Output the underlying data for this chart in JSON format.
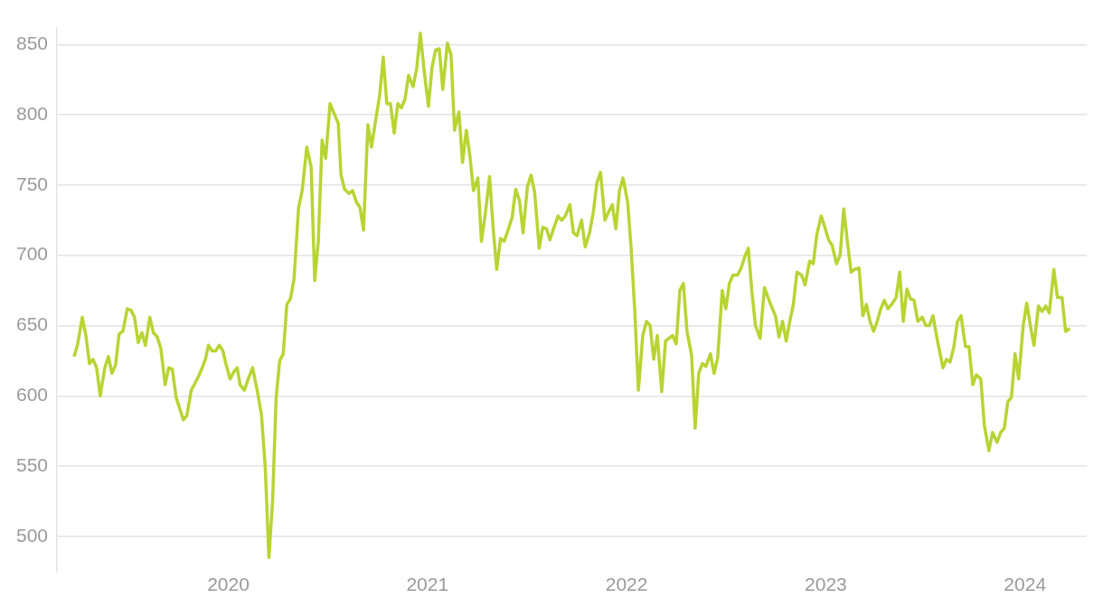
{
  "chart_data": {
    "type": "line",
    "x": [
      2019.226,
      2019.244,
      2019.267,
      2019.285,
      2019.303,
      2019.321,
      2019.339,
      2019.357,
      2019.38,
      2019.398,
      2019.416,
      2019.434,
      2019.452,
      2019.471,
      2019.493,
      2019.511,
      2019.529,
      2019.548,
      2019.566,
      2019.584,
      2019.606,
      2019.624,
      2019.643,
      2019.661,
      2019.683,
      2019.701,
      2019.719,
      2019.738,
      2019.756,
      2019.774,
      2019.792,
      2019.814,
      2019.833,
      2019.851,
      2019.869,
      2019.887,
      2019.9,
      2019.919,
      2019.937,
      2019.955,
      2019.973,
      2019.986,
      2020.009,
      2020.027,
      2020.045,
      2020.059,
      2020.081,
      2020.1,
      2020.122,
      2020.145,
      2020.167,
      2020.186,
      2020.204,
      2020.222,
      2020.24,
      2020.258,
      2020.276,
      2020.294,
      2020.312,
      2020.33,
      2020.353,
      2020.371,
      2020.394,
      2020.416,
      2020.434,
      2020.452,
      2020.471,
      2020.489,
      2020.511,
      2020.534,
      2020.552,
      2020.566,
      2020.584,
      2020.606,
      2020.624,
      2020.643,
      2020.661,
      2020.679,
      2020.701,
      2020.719,
      2020.742,
      2020.76,
      2020.778,
      2020.796,
      2020.814,
      2020.833,
      2020.851,
      2020.869,
      2020.887,
      2020.905,
      2020.928,
      2020.946,
      2020.964,
      2020.986,
      2021.005,
      2021.023,
      2021.041,
      2021.059,
      2021.077,
      2021.1,
      2021.118,
      2021.136,
      2021.158,
      2021.176,
      2021.195,
      2021.213,
      2021.231,
      2021.253,
      2021.271,
      2021.29,
      2021.312,
      2021.33,
      2021.348,
      2021.367,
      2021.385,
      2021.407,
      2021.425,
      2021.443,
      2021.462,
      2021.48,
      2021.502,
      2021.52,
      2021.538,
      2021.561,
      2021.579,
      2021.597,
      2021.615,
      2021.633,
      2021.656,
      2021.674,
      2021.692,
      2021.715,
      2021.733,
      2021.751,
      2021.774,
      2021.792,
      2021.814,
      2021.833,
      2021.851,
      2021.869,
      2021.891,
      2021.91,
      2021.928,
      2021.946,
      2021.964,
      2021.982,
      2022.005,
      2022.023,
      2022.041,
      2022.059,
      2022.081,
      2022.1,
      2022.118,
      2022.136,
      2022.154,
      2022.176,
      2022.195,
      2022.213,
      2022.231,
      2022.249,
      2022.267,
      2022.285,
      2022.303,
      2022.326,
      2022.344,
      2022.362,
      2022.38,
      2022.398,
      2022.421,
      2022.439,
      2022.457,
      2022.48,
      2022.498,
      2022.516,
      2022.534,
      2022.557,
      2022.575,
      2022.593,
      2022.611,
      2022.629,
      2022.647,
      2022.67,
      2022.692,
      2022.71,
      2022.729,
      2022.747,
      2022.765,
      2022.783,
      2022.801,
      2022.819,
      2022.837,
      2022.855,
      2022.878,
      2022.896,
      2022.919,
      2022.937,
      2022.955,
      2022.977,
      2022.995,
      2023.014,
      2023.032,
      2023.054,
      2023.072,
      2023.09,
      2023.109,
      2023.127,
      2023.145,
      2023.167,
      2023.186,
      2023.204,
      2023.222,
      2023.24,
      2023.258,
      2023.276,
      2023.294,
      2023.312,
      2023.335,
      2023.353,
      2023.371,
      2023.389,
      2023.407,
      2023.425,
      2023.443,
      2023.462,
      2023.484,
      2023.502,
      2023.52,
      2023.538,
      2023.561,
      2023.588,
      2023.606,
      2023.624,
      2023.643,
      2023.661,
      2023.679,
      2023.701,
      2023.719,
      2023.738,
      2023.756,
      2023.778,
      2023.796,
      2023.819,
      2023.837,
      2023.86,
      2023.878,
      2023.896,
      2023.914,
      2023.932,
      2023.95,
      2023.968,
      2023.991,
      2024.009,
      2024.027,
      2024.045,
      2024.068,
      2024.086,
      2024.104,
      2024.122,
      2024.145,
      2024.163,
      2024.186,
      2024.204,
      2024.226
    ],
    "series": [
      {
        "color": "#b8d434",
        "values": [
          628,
          637,
          656,
          643,
          623,
          626,
          620,
          600,
          620,
          628,
          616,
          622,
          644,
          646,
          662,
          661,
          656,
          638,
          645,
          636,
          656,
          645,
          642,
          634,
          608,
          620,
          619,
          599,
          591,
          583,
          586,
          604,
          609,
          614,
          620,
          627,
          636,
          632,
          632,
          636,
          632,
          624,
          612,
          617,
          620,
          608,
          604,
          612,
          620,
          604,
          586,
          548,
          485,
          524,
          598,
          625,
          630,
          665,
          669,
          683,
          734,
          746,
          777,
          763,
          682,
          710,
          782,
          769,
          808,
          800,
          794,
          757,
          747,
          744,
          746,
          738,
          734,
          718,
          793,
          777,
          798,
          814,
          841,
          808,
          808,
          787,
          808,
          805,
          811,
          828,
          820,
          833,
          858,
          828,
          806,
          834,
          846,
          847,
          818,
          851,
          843,
          789,
          802,
          766,
          789,
          771,
          746,
          755,
          710,
          729,
          756,
          719,
          690,
          712,
          710,
          719,
          727,
          747,
          739,
          716,
          749,
          757,
          745,
          705,
          720,
          719,
          711,
          719,
          728,
          725,
          728,
          736,
          716,
          714,
          725,
          706,
          716,
          731,
          752,
          759,
          725,
          731,
          736,
          719,
          746,
          755,
          738,
          704,
          660,
          604,
          643,
          653,
          650,
          626,
          643,
          603,
          639,
          641,
          643,
          637,
          675,
          680,
          646,
          629,
          577,
          616,
          623,
          621,
          630,
          616,
          627,
          675,
          662,
          680,
          686,
          686,
          691,
          699,
          705,
          674,
          650,
          641,
          677,
          670,
          663,
          657,
          642,
          653,
          639,
          653,
          665,
          688,
          686,
          679,
          696,
          694,
          715,
          728,
          720,
          711,
          707,
          694,
          700,
          733,
          709,
          688,
          690,
          691,
          657,
          665,
          653,
          646,
          653,
          662,
          668,
          662,
          666,
          670,
          688,
          653,
          676,
          669,
          668,
          653,
          656,
          650,
          650,
          657,
          639,
          620,
          626,
          624,
          635,
          653,
          657,
          635,
          635,
          608,
          615,
          612,
          579,
          561,
          574,
          567,
          574,
          577,
          596,
          599,
          630,
          612,
          650,
          666,
          650,
          636,
          664,
          660,
          664,
          659,
          690,
          670,
          670,
          646,
          648
        ]
      }
    ],
    "xlim": [
      2019.14,
      2024.31
    ],
    "xticks": [
      2020,
      2021,
      2022,
      2023,
      2024
    ],
    "ylim": [
      475,
      862
    ],
    "yticks": [
      500,
      550,
      600,
      650,
      700,
      750,
      800,
      850
    ],
    "grid": "y",
    "legend": false,
    "marker": "none",
    "line_style": "solid"
  }
}
